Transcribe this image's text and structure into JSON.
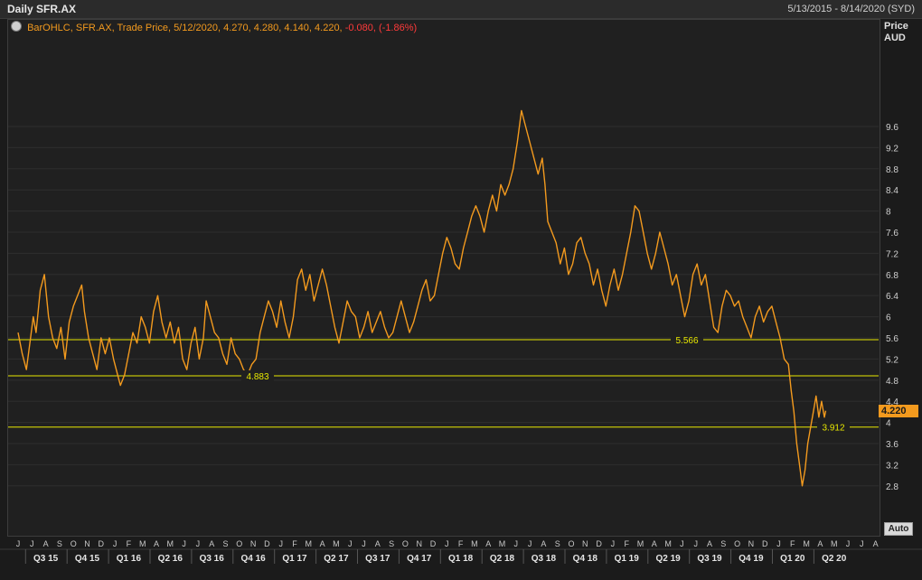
{
  "header": {
    "title": "Daily SFR.AX",
    "date_range": "5/13/2015 - 8/14/2020 (SYD)"
  },
  "legend": {
    "prefix": "BarOHLC, SFR.AX, Trade Price,",
    "values": "5/12/2020, 4.270, 4.280, 4.140, 4.220,",
    "change": "-0.080, (-1.86%)"
  },
  "axis": {
    "y_title_1": "Price",
    "y_title_2": "AUD",
    "auto_label": "Auto"
  },
  "colors": {
    "series": "#f39a1e",
    "hline": "#e8e800",
    "negative": "#ff3a3a"
  },
  "chart_data": {
    "type": "line",
    "title": "Daily SFR.AX",
    "ylabel": "Price AUD",
    "ylim": [
      2.6,
      10.3
    ],
    "yticks": [
      2.8,
      3.2,
      3.6,
      4,
      4.4,
      4.8,
      5.2,
      5.6,
      6,
      6.4,
      6.8,
      7.2,
      7.6,
      8,
      8.4,
      8.8,
      9.2,
      9.6
    ],
    "ytick_labels": [
      "2.8",
      "3.2",
      "3.6",
      "4",
      "4.4",
      "4.8",
      "5.2",
      "5.6",
      "6",
      "6.4",
      "6.8",
      "7.2",
      "7.6",
      "8",
      "8.4",
      "8.8",
      "9.2",
      "9.6"
    ],
    "last_price": "4.220",
    "months": [
      "J",
      "J",
      "A",
      "S",
      "O",
      "N",
      "D",
      "J",
      "F",
      "M",
      "A",
      "M",
      "J",
      "J",
      "A",
      "S",
      "O",
      "N",
      "D",
      "J",
      "F",
      "M",
      "A",
      "M",
      "J",
      "J",
      "A",
      "S",
      "O",
      "N",
      "D",
      "J",
      "F",
      "M",
      "A",
      "M",
      "J",
      "J",
      "A",
      "S",
      "O",
      "N",
      "D",
      "J",
      "F",
      "M",
      "A",
      "M",
      "J",
      "J",
      "A",
      "S",
      "O",
      "N",
      "D",
      "J",
      "F",
      "M",
      "A",
      "M",
      "J",
      "J",
      "A"
    ],
    "quarters": [
      "Q3 15",
      "Q4 15",
      "Q1 16",
      "Q2 16",
      "Q3 16",
      "Q4 16",
      "Q1 17",
      "Q2 17",
      "Q3 17",
      "Q4 17",
      "Q1 18",
      "Q2 18",
      "Q3 18",
      "Q4 18",
      "Q1 19",
      "Q2 19",
      "Q3 19",
      "Q4 19",
      "Q1 20",
      "Q2 20"
    ],
    "horizontal_lines": [
      {
        "value": 5.566,
        "label": "5.566"
      },
      {
        "value": 4.883,
        "label": "4.883"
      },
      {
        "value": 3.912,
        "label": "3.912"
      }
    ],
    "points": [
      [
        0,
        5.7
      ],
      [
        0.3,
        5.3
      ],
      [
        0.6,
        5.0
      ],
      [
        0.9,
        5.6
      ],
      [
        1.1,
        6.0
      ],
      [
        1.3,
        5.7
      ],
      [
        1.6,
        6.5
      ],
      [
        1.9,
        6.8
      ],
      [
        2.2,
        6.0
      ],
      [
        2.5,
        5.6
      ],
      [
        2.8,
        5.4
      ],
      [
        3.1,
        5.8
      ],
      [
        3.4,
        5.2
      ],
      [
        3.7,
        5.9
      ],
      [
        4.0,
        6.2
      ],
      [
        4.3,
        6.4
      ],
      [
        4.6,
        6.6
      ],
      [
        4.8,
        6.1
      ],
      [
        5.1,
        5.6
      ],
      [
        5.4,
        5.3
      ],
      [
        5.7,
        5.0
      ],
      [
        6.0,
        5.6
      ],
      [
        6.3,
        5.3
      ],
      [
        6.6,
        5.6
      ],
      [
        6.9,
        5.2
      ],
      [
        7.1,
        5.0
      ],
      [
        7.4,
        4.7
      ],
      [
        7.7,
        4.9
      ],
      [
        8.0,
        5.3
      ],
      [
        8.3,
        5.7
      ],
      [
        8.6,
        5.5
      ],
      [
        8.9,
        6.0
      ],
      [
        9.2,
        5.8
      ],
      [
        9.5,
        5.5
      ],
      [
        9.8,
        6.1
      ],
      [
        10.1,
        6.4
      ],
      [
        10.4,
        5.9
      ],
      [
        10.7,
        5.6
      ],
      [
        11.0,
        5.9
      ],
      [
        11.3,
        5.5
      ],
      [
        11.6,
        5.8
      ],
      [
        11.9,
        5.2
      ],
      [
        12.2,
        5.0
      ],
      [
        12.5,
        5.5
      ],
      [
        12.8,
        5.8
      ],
      [
        13.1,
        5.2
      ],
      [
        13.4,
        5.6
      ],
      [
        13.6,
        6.3
      ],
      [
        13.9,
        6.0
      ],
      [
        14.2,
        5.7
      ],
      [
        14.5,
        5.6
      ],
      [
        14.8,
        5.3
      ],
      [
        15.1,
        5.1
      ],
      [
        15.4,
        5.6
      ],
      [
        15.7,
        5.3
      ],
      [
        16.0,
        5.2
      ],
      [
        16.3,
        5.0
      ],
      [
        16.6,
        4.9
      ],
      [
        16.9,
        5.1
      ],
      [
        17.2,
        5.2
      ],
      [
        17.5,
        5.7
      ],
      [
        17.8,
        6.0
      ],
      [
        18.1,
        6.3
      ],
      [
        18.4,
        6.1
      ],
      [
        18.7,
        5.8
      ],
      [
        19.0,
        6.3
      ],
      [
        19.3,
        5.9
      ],
      [
        19.6,
        5.6
      ],
      [
        19.9,
        6.0
      ],
      [
        20.2,
        6.7
      ],
      [
        20.5,
        6.9
      ],
      [
        20.8,
        6.5
      ],
      [
        21.1,
        6.8
      ],
      [
        21.4,
        6.3
      ],
      [
        21.7,
        6.6
      ],
      [
        22.0,
        6.9
      ],
      [
        22.3,
        6.6
      ],
      [
        22.6,
        6.2
      ],
      [
        22.9,
        5.8
      ],
      [
        23.2,
        5.5
      ],
      [
        23.5,
        5.9
      ],
      [
        23.8,
        6.3
      ],
      [
        24.1,
        6.1
      ],
      [
        24.4,
        6.0
      ],
      [
        24.7,
        5.6
      ],
      [
        25.0,
        5.8
      ],
      [
        25.3,
        6.1
      ],
      [
        25.6,
        5.7
      ],
      [
        25.9,
        5.9
      ],
      [
        26.2,
        6.1
      ],
      [
        26.5,
        5.8
      ],
      [
        26.8,
        5.6
      ],
      [
        27.1,
        5.7
      ],
      [
        27.4,
        6.0
      ],
      [
        27.7,
        6.3
      ],
      [
        28.0,
        6.0
      ],
      [
        28.3,
        5.7
      ],
      [
        28.6,
        5.9
      ],
      [
        28.9,
        6.2
      ],
      [
        29.2,
        6.5
      ],
      [
        29.5,
        6.7
      ],
      [
        29.8,
        6.3
      ],
      [
        30.1,
        6.4
      ],
      [
        30.4,
        6.8
      ],
      [
        30.7,
        7.2
      ],
      [
        31.0,
        7.5
      ],
      [
        31.3,
        7.3
      ],
      [
        31.6,
        7.0
      ],
      [
        31.9,
        6.9
      ],
      [
        32.2,
        7.3
      ],
      [
        32.5,
        7.6
      ],
      [
        32.8,
        7.9
      ],
      [
        33.1,
        8.1
      ],
      [
        33.4,
        7.9
      ],
      [
        33.7,
        7.6
      ],
      [
        34.0,
        8.0
      ],
      [
        34.3,
        8.3
      ],
      [
        34.6,
        8.0
      ],
      [
        34.9,
        8.5
      ],
      [
        35.2,
        8.3
      ],
      [
        35.5,
        8.5
      ],
      [
        35.8,
        8.8
      ],
      [
        36.1,
        9.3
      ],
      [
        36.4,
        9.9
      ],
      [
        36.7,
        9.6
      ],
      [
        37.0,
        9.3
      ],
      [
        37.3,
        9.0
      ],
      [
        37.6,
        8.7
      ],
      [
        37.9,
        9.0
      ],
      [
        38.1,
        8.5
      ],
      [
        38.3,
        7.8
      ],
      [
        38.6,
        7.6
      ],
      [
        38.9,
        7.4
      ],
      [
        39.2,
        7.0
      ],
      [
        39.5,
        7.3
      ],
      [
        39.8,
        6.8
      ],
      [
        40.1,
        7.0
      ],
      [
        40.4,
        7.4
      ],
      [
        40.7,
        7.5
      ],
      [
        41.0,
        7.2
      ],
      [
        41.3,
        7.0
      ],
      [
        41.6,
        6.6
      ],
      [
        41.9,
        6.9
      ],
      [
        42.2,
        6.5
      ],
      [
        42.5,
        6.2
      ],
      [
        42.8,
        6.6
      ],
      [
        43.1,
        6.9
      ],
      [
        43.4,
        6.5
      ],
      [
        43.7,
        6.8
      ],
      [
        44.0,
        7.2
      ],
      [
        44.3,
        7.6
      ],
      [
        44.6,
        8.1
      ],
      [
        44.9,
        8.0
      ],
      [
        45.2,
        7.6
      ],
      [
        45.5,
        7.2
      ],
      [
        45.8,
        6.9
      ],
      [
        46.1,
        7.2
      ],
      [
        46.4,
        7.6
      ],
      [
        46.7,
        7.3
      ],
      [
        47.0,
        7.0
      ],
      [
        47.3,
        6.6
      ],
      [
        47.6,
        6.8
      ],
      [
        47.9,
        6.4
      ],
      [
        48.2,
        6.0
      ],
      [
        48.5,
        6.3
      ],
      [
        48.8,
        6.8
      ],
      [
        49.1,
        7.0
      ],
      [
        49.4,
        6.6
      ],
      [
        49.7,
        6.8
      ],
      [
        50.0,
        6.3
      ],
      [
        50.3,
        5.8
      ],
      [
        50.6,
        5.7
      ],
      [
        50.9,
        6.2
      ],
      [
        51.2,
        6.5
      ],
      [
        51.5,
        6.4
      ],
      [
        51.8,
        6.2
      ],
      [
        52.1,
        6.3
      ],
      [
        52.4,
        6.0
      ],
      [
        52.7,
        5.8
      ],
      [
        53.0,
        5.6
      ],
      [
        53.3,
        6.0
      ],
      [
        53.6,
        6.2
      ],
      [
        53.9,
        5.9
      ],
      [
        54.2,
        6.1
      ],
      [
        54.5,
        6.2
      ],
      [
        54.8,
        5.9
      ],
      [
        55.1,
        5.6
      ],
      [
        55.4,
        5.2
      ],
      [
        55.7,
        5.1
      ],
      [
        55.9,
        4.6
      ],
      [
        56.1,
        4.2
      ],
      [
        56.3,
        3.6
      ],
      [
        56.5,
        3.2
      ],
      [
        56.7,
        2.8
      ],
      [
        56.9,
        3.1
      ],
      [
        57.1,
        3.6
      ],
      [
        57.3,
        3.9
      ],
      [
        57.5,
        4.2
      ],
      [
        57.7,
        4.5
      ],
      [
        57.9,
        4.1
      ],
      [
        58.1,
        4.4
      ],
      [
        58.3,
        4.1
      ],
      [
        58.4,
        4.22
      ]
    ]
  }
}
